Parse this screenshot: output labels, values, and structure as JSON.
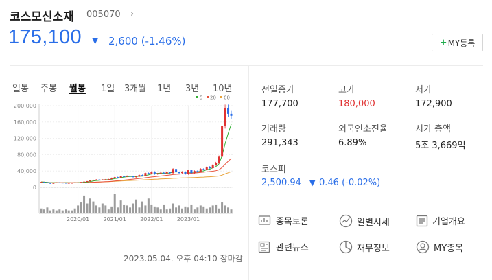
{
  "header": {
    "name": "코스모신소재",
    "code": "005070",
    "code_chevron": "›",
    "price": "175,100",
    "change_arrow": "▼",
    "change": "2,600 (-1.46%)",
    "my_button_plus": "+",
    "my_button_label": "MY등록"
  },
  "periods": [
    "일봉",
    "주봉",
    "월봉",
    "1일",
    "3개월",
    "1년",
    "3년",
    "10년"
  ],
  "active_period": "월봉",
  "chart_data": {
    "type": "candlestick",
    "title": "",
    "xlabel": "",
    "ylabel": "",
    "y_ticks": [
      "200,000",
      "160,000",
      "120,000",
      "80,000",
      "40,000",
      "0"
    ],
    "ylim": [
      0,
      200000
    ],
    "x_ticks": [
      "2020/01",
      "2021/01",
      "2022/01",
      "2023/01"
    ],
    "legend": [
      "5",
      "20",
      "60"
    ],
    "legend_position": "top-right",
    "colors": {
      "up": "#e03131",
      "down": "#2a6ee8",
      "ma5": "#33b033",
      "ma20": "#e8503a",
      "ma60": "#e8a33a",
      "volume": "#9c9c9c"
    },
    "monthly_close": [
      13000,
      12500,
      11500,
      9000,
      11000,
      12000,
      11500,
      11000,
      10500,
      10800,
      11000,
      12000,
      12000,
      13000,
      14000,
      15000,
      17000,
      18000,
      19000,
      17500,
      19000,
      19500,
      20000,
      23000,
      25000,
      24000,
      27000,
      26000,
      28000,
      27000,
      25000,
      26500,
      30000,
      28000,
      35000,
      33000,
      38000,
      32000,
      34000,
      36000,
      34000,
      37000,
      35000,
      45000,
      37000,
      35000,
      38000,
      32000,
      42000,
      35000,
      40000,
      38000,
      45000,
      43000,
      50000,
      47000,
      55000,
      60000,
      75000,
      150000,
      195000,
      180000,
      175100
    ],
    "volume_relative": [
      0.25,
      0.2,
      0.3,
      0.15,
      0.2,
      0.15,
      0.2,
      0.15,
      0.2,
      0.15,
      0.15,
      0.25,
      0.4,
      0.55,
      0.9,
      0.5,
      0.75,
      0.6,
      0.4,
      0.3,
      0.5,
      0.4,
      0.2,
      0.35,
      1.0,
      0.3,
      0.65,
      0.45,
      0.4,
      0.3,
      0.5,
      0.7,
      0.3,
      0.6,
      0.4,
      0.75,
      0.45,
      0.35,
      0.3,
      0.2,
      0.45,
      0.2,
      0.25,
      0.5,
      0.3,
      0.4,
      0.25,
      0.35,
      0.3,
      0.45,
      0.2,
      0.3,
      0.4,
      0.35,
      0.25,
      0.3,
      0.4,
      0.45,
      0.25,
      0.55,
      0.4,
      0.3,
      0.2
    ]
  },
  "stats": [
    {
      "label": "전일종가",
      "value": "177,700",
      "color": "normal"
    },
    {
      "label": "고가",
      "value": "180,000",
      "color": "red"
    },
    {
      "label": "저가",
      "value": "172,900",
      "color": "normal"
    },
    {
      "label": "거래량",
      "value": "291,343",
      "color": "normal"
    },
    {
      "label": "외국인소진율",
      "value": "6.89%",
      "color": "normal"
    },
    {
      "label": "시가 총액",
      "value": "5조 3,669억",
      "color": "normal"
    }
  ],
  "kospi": {
    "label": "코스피",
    "value": "2,500.94",
    "arrow": "▼",
    "change": "0.46 (-0.02%)"
  },
  "links": [
    {
      "label": "종목토론",
      "icon": "discussion-icon"
    },
    {
      "label": "일별시세",
      "icon": "chart-icon"
    },
    {
      "label": "기업개요",
      "icon": "list-icon"
    },
    {
      "label": "관련뉴스",
      "icon": "news-icon"
    },
    {
      "label": "재무정보",
      "icon": "pie-icon"
    },
    {
      "label": "MY종목",
      "icon": "user-icon"
    }
  ],
  "timestamp": "2023.05.04. 오후 04:10 장마감"
}
